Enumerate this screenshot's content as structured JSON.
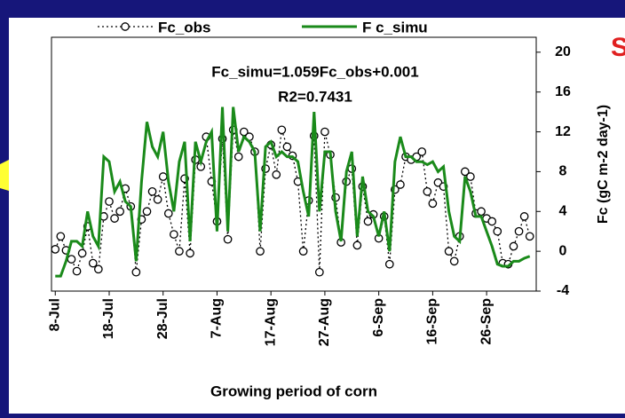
{
  "chart_data": {
    "type": "line",
    "legend_labels": [],
    "annotations": [
      "Fc_simu=1.059Fc_obs+0.001",
      "R2=0.7431",
      "S"
    ],
    "xlabel": "Growing period of corn",
    "ylabel": "Fc (gC m-2 day-1)",
    "x": [
      0,
      1,
      2,
      3,
      4,
      5,
      6,
      7,
      8,
      9,
      10,
      11,
      12,
      13,
      14,
      15,
      16,
      17,
      18,
      19,
      20,
      21,
      22,
      23,
      24,
      25,
      26,
      27,
      28,
      29,
      30,
      31,
      32,
      33,
      34,
      35,
      36,
      37,
      38,
      39,
      40,
      41,
      42,
      43,
      44,
      45,
      46,
      47,
      48,
      49,
      50,
      51,
      52,
      53,
      54,
      55,
      56,
      57,
      58,
      59,
      60,
      61,
      62,
      63,
      64,
      65,
      66,
      67,
      68,
      69,
      70,
      71,
      72,
      73,
      74,
      75,
      76,
      77,
      78,
      79,
      80,
      81,
      82,
      83,
      84,
      85,
      86,
      87,
      88
    ],
    "series": [
      {
        "name": "Fc_obs",
        "color": "#000000",
        "marker": "circle",
        "dash": "dotted",
        "values": [
          0.2,
          1.5,
          0.1,
          -0.8,
          -2,
          -0.2,
          2.5,
          -1.2,
          -1.8,
          3.5,
          5,
          3.3,
          4,
          6.3,
          4.5,
          -2.1,
          3.2,
          4,
          6,
          5.2,
          7.5,
          3.8,
          1.7,
          0,
          7.3,
          -0.2,
          9.2,
          8.5,
          11.5,
          7,
          3,
          11.3,
          1.2,
          12.2,
          9.5,
          12,
          11.5,
          10,
          0,
          8.3,
          10.7,
          7.7,
          12.2,
          10.5,
          9.6,
          7,
          0,
          5.1,
          11.6,
          -2.1,
          12,
          9.7,
          5.4,
          0.9,
          7,
          8.3,
          0.6,
          6.5,
          3,
          3.7,
          1.3,
          3.5,
          -1.3,
          6.2,
          6.7,
          9.5,
          9.2,
          9.5,
          10,
          6,
          4.8,
          6.9,
          6.5,
          0,
          -1,
          1.5,
          8,
          7.5,
          3.8,
          4,
          3.3,
          3,
          2,
          -1.2,
          -1.3,
          0.5,
          2,
          3.5,
          1.5
        ]
      },
      {
        "name": "F c_simu",
        "color": "#1a8a1a",
        "marker": "none",
        "dash": "solid",
        "values": [
          -2.5,
          -2.5,
          -1,
          1,
          1,
          0.5,
          4,
          1.5,
          0.5,
          9.5,
          9,
          6,
          7,
          5,
          4.5,
          -1,
          7,
          13,
          10.5,
          9.5,
          12,
          7,
          4,
          9,
          11,
          1,
          11,
          9,
          11,
          12,
          2,
          14.5,
          2,
          14.5,
          10,
          11.5,
          11,
          10,
          2,
          10.5,
          11,
          9.5,
          10,
          9.5,
          9.5,
          9,
          6,
          3.5,
          14,
          4,
          10,
          10,
          4,
          1,
          8,
          10,
          1.5,
          7.5,
          4,
          3.5,
          1.5,
          4,
          0,
          9,
          11.5,
          9.5,
          9.5,
          9,
          9,
          8.7,
          9,
          8,
          8.5,
          4,
          1.5,
          1,
          7.5,
          6,
          3.5,
          3.5,
          2,
          0.5,
          -1.3,
          -1.5,
          -1.5,
          -1,
          -1,
          -0.7,
          -0.5
        ]
      }
    ],
    "xlim": [
      -0.7,
      89.2
    ],
    "xticks": [
      {
        "value": 0,
        "label": "8-Jul"
      },
      {
        "value": 10,
        "label": "18-Jul"
      },
      {
        "value": 20,
        "label": "28-Jul"
      },
      {
        "value": 30,
        "label": "7-Aug"
      },
      {
        "value": 40,
        "label": "17-Aug"
      },
      {
        "value": 50,
        "label": "27-Aug"
      },
      {
        "value": 60,
        "label": "6-Sep"
      },
      {
        "value": 70,
        "label": "16-Sep"
      },
      {
        "value": 80,
        "label": "26-Sep"
      }
    ],
    "ylim": [
      -4,
      21.5
    ],
    "yticks": [
      -4,
      0,
      4,
      8,
      12,
      16,
      20
    ],
    "yaxis_side": "right"
  }
}
